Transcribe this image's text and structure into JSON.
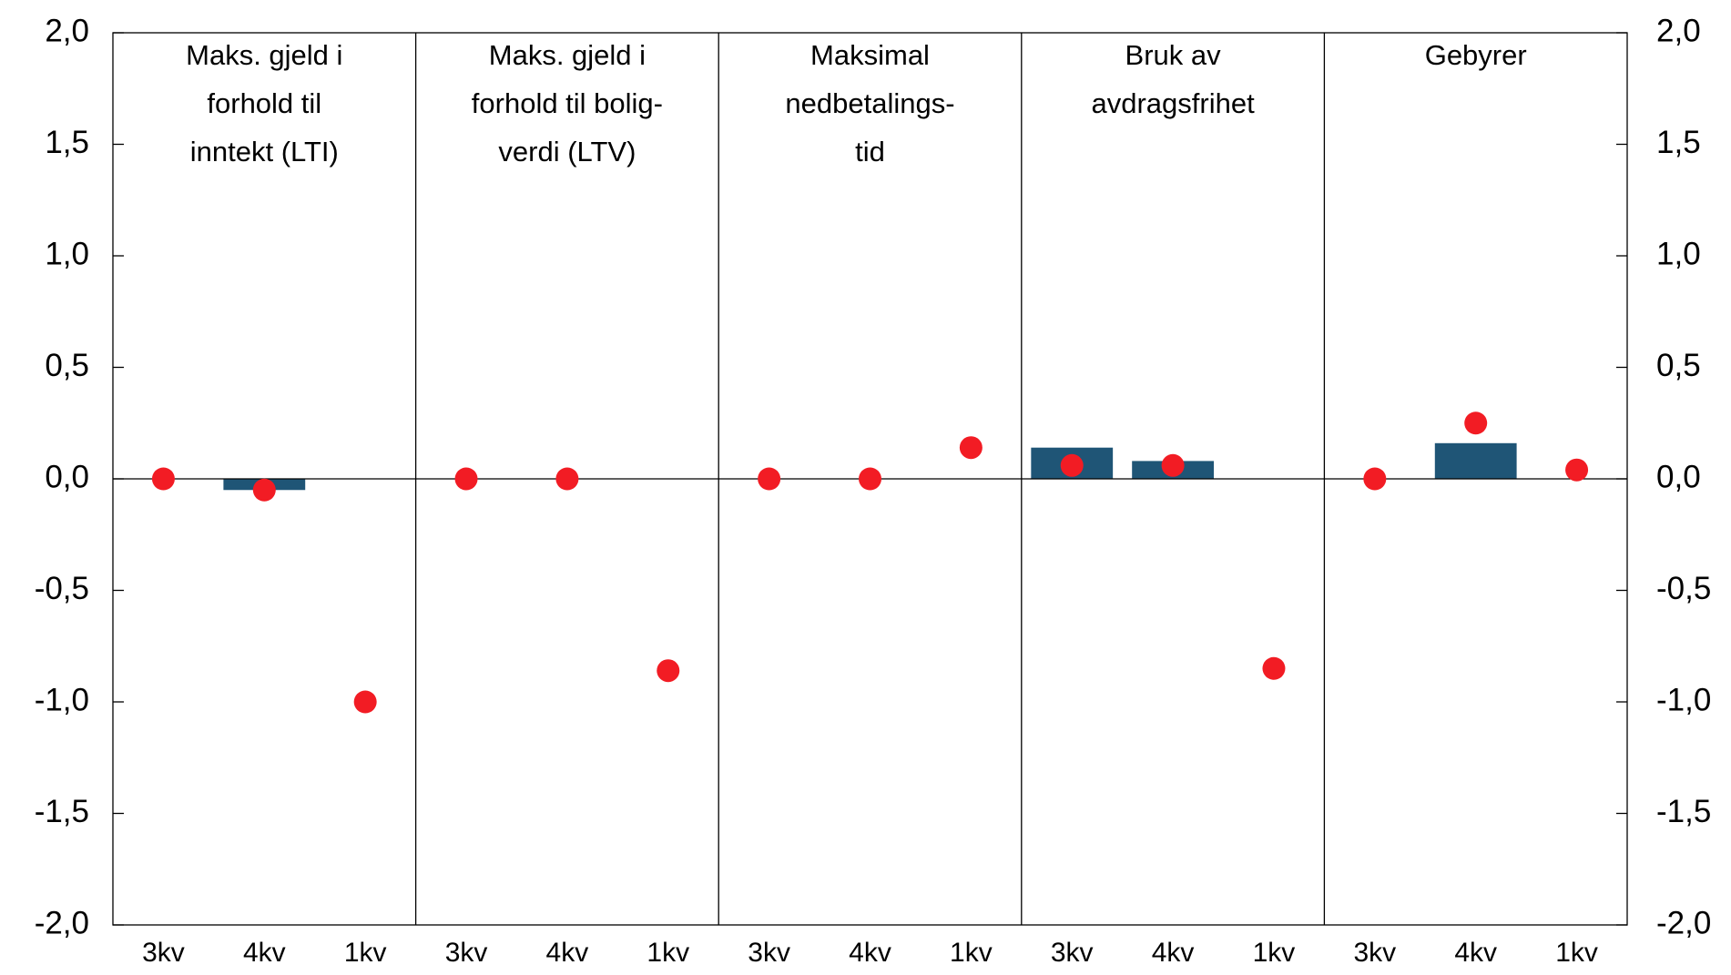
{
  "chart_data": {
    "type": "bar",
    "panel_titles": [
      [
        "Maks. gjeld i",
        "forhold til",
        "inntekt (LTI)"
      ],
      [
        "Maks. gjeld i",
        "forhold til bolig-",
        "verdi (LTV)"
      ],
      [
        "Maksimal",
        "nedbetalings-",
        "tid"
      ],
      [
        "Bruk av",
        "avdragsfrihet"
      ],
      [
        "Gebyrer"
      ]
    ],
    "categories": [
      "3kv",
      "4kv",
      "1kv",
      "3kv",
      "4kv",
      "1kv",
      "3kv",
      "4kv",
      "1kv",
      "3kv",
      "4kv",
      "1kv",
      "3kv",
      "4kv",
      "1kv"
    ],
    "series": [
      {
        "type": "bar",
        "color": "#1f5576",
        "values": [
          null,
          -0.05,
          null,
          null,
          null,
          null,
          null,
          null,
          null,
          0.14,
          0.08,
          null,
          null,
          0.16,
          null
        ]
      },
      {
        "type": "scatter",
        "color": "#f21c24",
        "values": [
          0,
          -0.05,
          -1.0,
          0,
          0,
          -0.86,
          0,
          0,
          0.14,
          0.06,
          0.06,
          -0.85,
          0,
          0.25,
          0.04
        ]
      }
    ],
    "ylim": [
      -2,
      2
    ],
    "yticks": [
      {
        "value": -2,
        "label": "-2,0"
      },
      {
        "value": -1.5,
        "label": "-1,5"
      },
      {
        "value": -1,
        "label": "-1,0"
      },
      {
        "value": -0.5,
        "label": "-0,5"
      },
      {
        "value": 0,
        "label": "0,0"
      },
      {
        "value": 0.5,
        "label": "0,5"
      },
      {
        "value": 1,
        "label": "1,0"
      },
      {
        "value": 1.5,
        "label": "1,5"
      },
      {
        "value": 2,
        "label": "2,0"
      }
    ],
    "y2lim": [
      -2,
      2
    ],
    "y2ticks": [
      {
        "value": -2,
        "label": "-2,0"
      },
      {
        "value": -1.5,
        "label": "-1,5"
      },
      {
        "value": -1,
        "label": "-1,0"
      },
      {
        "value": -0.5,
        "label": "-0,5"
      },
      {
        "value": 0,
        "label": "0,0"
      },
      {
        "value": 0.5,
        "label": "0,5"
      },
      {
        "value": 1,
        "label": "1,0"
      },
      {
        "value": 1.5,
        "label": "1,5"
      },
      {
        "value": 2,
        "label": "2,0"
      }
    ]
  }
}
